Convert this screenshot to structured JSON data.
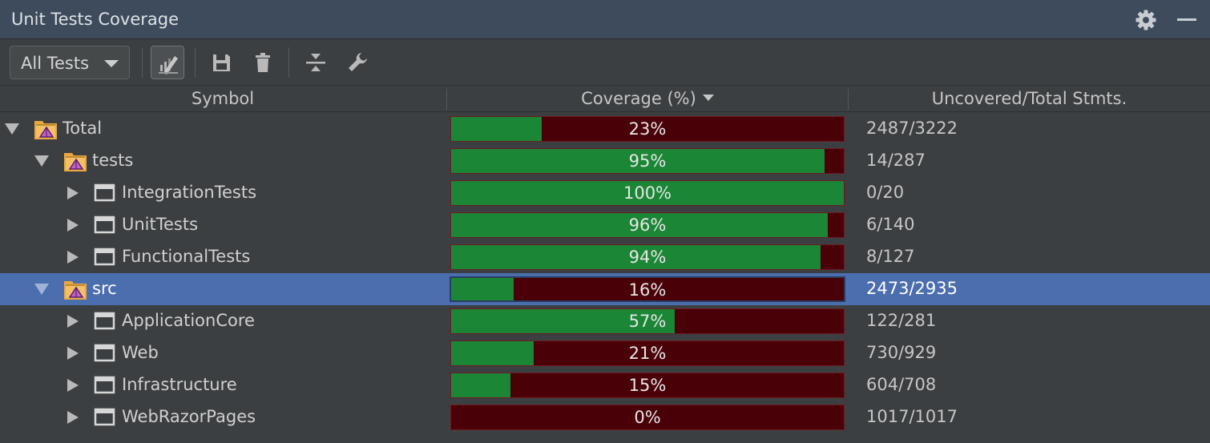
{
  "window": {
    "title": "Unit Tests Coverage"
  },
  "toolbar": {
    "filter_value": "All Tests",
    "buttons": [
      "highlight-icon",
      "save-icon",
      "delete-icon",
      "collapse-icon",
      "settings-wrench-icon"
    ]
  },
  "columns": {
    "symbol": "Symbol",
    "coverage": "Coverage (%)",
    "stmts": "Uncovered/Total Stmts."
  },
  "colors": {
    "covered": "#1b8635",
    "uncovered": "#4a0007",
    "selection": "#4b6eaf"
  },
  "rows": [
    {
      "label": "Total",
      "type": "folder",
      "level": 0,
      "expanded": true,
      "coverage_pct": 23,
      "coverage_label": "23%",
      "stmts": "2487/3222",
      "selected": false
    },
    {
      "label": "tests",
      "type": "folder",
      "level": 1,
      "expanded": true,
      "coverage_pct": 95,
      "coverage_label": "95%",
      "stmts": "14/287",
      "selected": false
    },
    {
      "label": "IntegrationTests",
      "type": "project",
      "level": 2,
      "expanded": false,
      "coverage_pct": 100,
      "coverage_label": "100%",
      "stmts": "0/20",
      "selected": false
    },
    {
      "label": "UnitTests",
      "type": "project",
      "level": 2,
      "expanded": false,
      "coverage_pct": 96,
      "coverage_label": "96%",
      "stmts": "6/140",
      "selected": false
    },
    {
      "label": "FunctionalTests",
      "type": "project",
      "level": 2,
      "expanded": false,
      "coverage_pct": 94,
      "coverage_label": "94%",
      "stmts": "8/127",
      "selected": false
    },
    {
      "label": "src",
      "type": "folder",
      "level": 1,
      "expanded": true,
      "coverage_pct": 16,
      "coverage_label": "16%",
      "stmts": "2473/2935",
      "selected": true
    },
    {
      "label": "ApplicationCore",
      "type": "project",
      "level": 2,
      "expanded": false,
      "coverage_pct": 57,
      "coverage_label": "57%",
      "stmts": "122/281",
      "selected": false
    },
    {
      "label": "Web",
      "type": "project",
      "level": 2,
      "expanded": false,
      "coverage_pct": 21,
      "coverage_label": "21%",
      "stmts": "730/929",
      "selected": false
    },
    {
      "label": "Infrastructure",
      "type": "project",
      "level": 2,
      "expanded": false,
      "coverage_pct": 15,
      "coverage_label": "15%",
      "stmts": "604/708",
      "selected": false
    },
    {
      "label": "WebRazorPages",
      "type": "project",
      "level": 2,
      "expanded": false,
      "coverage_pct": 0,
      "coverage_label": "0%",
      "stmts": "1017/1017",
      "selected": false
    }
  ]
}
